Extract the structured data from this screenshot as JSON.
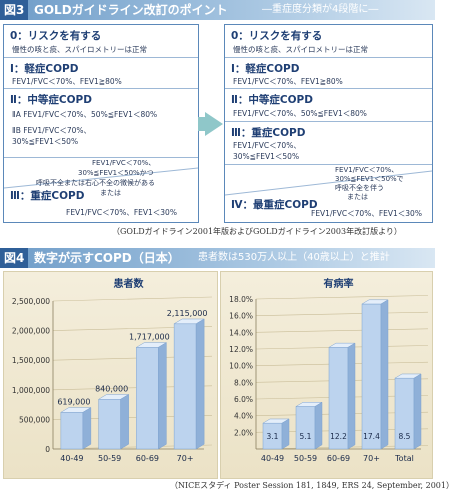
{
  "figure3": {
    "badge": "図3",
    "title": "GOLDガイドライン改訂のポイント",
    "subtitle": "―重症度分類が4段階に―",
    "left_panel": {
      "stages": [
        {
          "title": "0：リスクを有する",
          "desc": [
            "慢性の咳と痰、スパイロメトリーは正常"
          ]
        },
        {
          "title": "Ⅰ：軽症COPD",
          "desc": [
            "FEV1/FVC＜70%、FEV1≧80%"
          ]
        },
        {
          "title": "Ⅱ：中等症COPD",
          "desc": [
            "ⅡA FEV1/FVC＜70%、50%≦FEV1＜80%",
            "ⅡB FEV1/FVC＜70%、",
            "30%≦FEV1＜50%"
          ]
        },
        {
          "title": "Ⅲ：重症COPD",
          "desc": [
            "FEV1/FVC＜70%、",
            "30%≦FEV1＜50%かつ",
            "呼吸不全または右心不全の徴候がある",
            "または",
            "FEV1/FVC＜70%、FEV1＜30%"
          ]
        }
      ]
    },
    "right_panel": {
      "stages": [
        {
          "title": "0：リスクを有する",
          "desc": [
            "慢性の咳と痰、スパイロメトリーは正常"
          ]
        },
        {
          "title": "Ⅰ：軽症COPD",
          "desc": [
            "FEV1/FVC＜70%、FEV1≧80%"
          ]
        },
        {
          "title": "Ⅱ：中等症COPD",
          "desc": [
            "FEV1/FVC＜70%、50%≦FEV1＜80%"
          ]
        },
        {
          "title": "Ⅲ：重症COPD",
          "desc": [
            "FEV1/FVC＜70%、",
            "30%≦FEV1＜50%"
          ]
        },
        {
          "title": "Ⅳ：最重症COPD",
          "desc": [
            "FEV1/FVC＜70%、",
            "30%≦FEV1＜50%で",
            "呼吸不全を伴う",
            "または",
            "FEV1/FVC＜70%、FEV1＜30%"
          ]
        }
      ]
    },
    "source": "（GOLDガイドライン2001年版およびGOLDガイドライン2003年改訂版より）"
  },
  "figure4": {
    "badge": "図4",
    "title": "数字が示すCOPD（日本）",
    "subtitle": "患者数は530万人以上（40歳以上）と推計",
    "source": "（NICEスタディ Poster Session 181, 1849, ERS 24, September, 2001）"
  },
  "chart_data": [
    {
      "type": "bar",
      "title": "患者数",
      "categories": [
        "40-49",
        "50-59",
        "60-69",
        "70+"
      ],
      "values": [
        619000,
        840000,
        1717000,
        2115000
      ],
      "value_labels": [
        "619,000",
        "840,000",
        "1,717,000",
        "2,115,000"
      ],
      "yticks": [
        0,
        500000,
        1000000,
        1500000,
        2000000,
        2500000
      ],
      "ytick_labels": [
        "0",
        "500,000",
        "1,000,000",
        "1,500,000",
        "2,000,000",
        "2,500,000"
      ],
      "ylim": [
        0,
        2500000
      ],
      "grid": true,
      "bar_color": "#bcd3ee"
    },
    {
      "type": "bar",
      "title": "有病率",
      "categories": [
        "40-49",
        "50-59",
        "60-69",
        "70+",
        "Total"
      ],
      "values": [
        3.1,
        5.1,
        12.2,
        17.4,
        8.5
      ],
      "value_labels": [
        "3.1",
        "5.1",
        "12.2",
        "17.4",
        "8.5"
      ],
      "yticks": [
        0,
        2,
        4,
        6,
        8,
        10,
        12,
        14,
        16,
        18
      ],
      "ytick_labels": [
        "",
        "2.0%",
        "4.0%",
        "6.0%",
        "8.0%",
        "10.0%",
        "12.0%",
        "14.0%",
        "16.0%",
        "18.0%"
      ],
      "ylim": [
        0,
        18
      ],
      "grid": true,
      "bar_color": "#bcd3ee"
    }
  ]
}
